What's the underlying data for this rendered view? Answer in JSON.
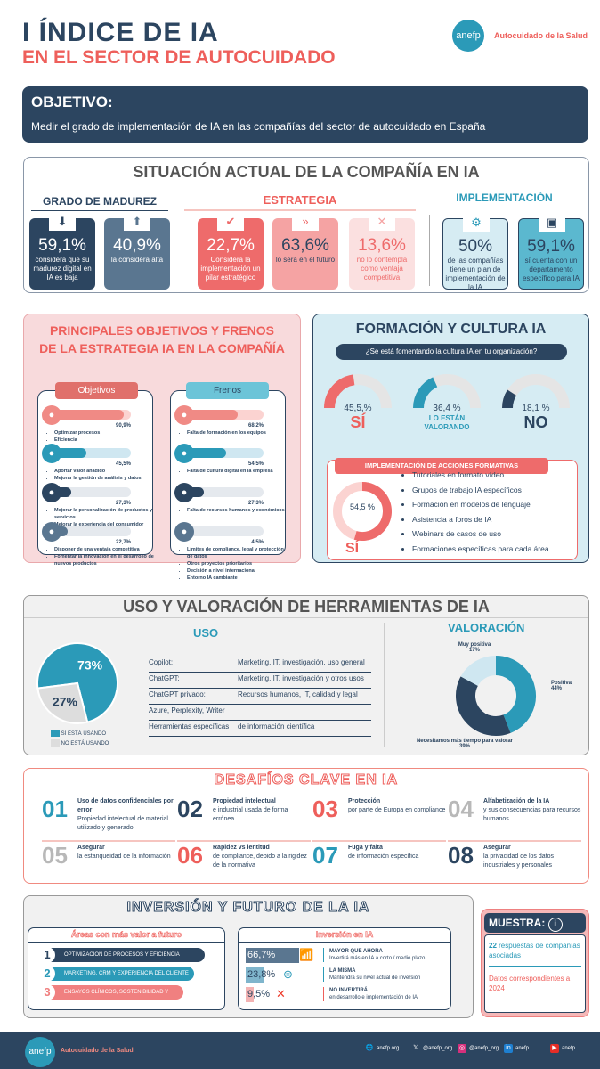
{
  "header": {
    "title": "I ÍNDICE DE IA",
    "subtitle": "EN EL SECTOR DE AUTOCUIDADO",
    "logo": "anefp",
    "logo_tag": "Autocuidado de la Salud"
  },
  "objetivo": {
    "title": "OBJETIVO:",
    "text": "Medir el grado de implementación de IA en las compañías del sector de autocuidado en España"
  },
  "situacion": {
    "title": "SITUACIÓN ACTUAL DE LA COMPAÑÍA EN IA",
    "madurez": {
      "title": "GRADO DE MADUREZ",
      "cards": [
        {
          "value": "59,1%",
          "text": "considera que su madurez digital en IA es baja",
          "icon": "arrow-down-icon"
        },
        {
          "value": "40,9%",
          "text": "la considera alta",
          "icon": "arrow-up-icon"
        }
      ]
    },
    "estrategia": {
      "title": "ESTRATEGIA",
      "cards": [
        {
          "value": "22,7%",
          "text": "Considera la implementación un pilar estratégico",
          "icon": "check-icon"
        },
        {
          "value": "63,6%",
          "text": "lo será en el futuro",
          "icon": "chevrons-icon"
        },
        {
          "value": "13,6%",
          "text": "no lo contempla como ventaja competitiva",
          "icon": "x-icon"
        }
      ]
    },
    "implementacion": {
      "title": "IMPLEMENTACIÓN",
      "cards": [
        {
          "value": "50%",
          "text": "de las compañías tiene un plan de implementación de la IA",
          "icon": "gear-icon"
        },
        {
          "value": "59,1%",
          "text": "sí cuenta con un departamento específico para IA",
          "icon": "ai-chip-icon"
        }
      ]
    }
  },
  "principales": {
    "title1": "PRINCIPALES OBJETIVOS Y FRENOS",
    "title2": "DE LA ESTRATEGIA IA EN LA COMPAÑÍA",
    "objetivos": {
      "label": "Objetivos",
      "items": [
        {
          "pct": 90.9,
          "pct_label": "90,9%",
          "bullets": [
            "Optimizar procesos",
            "Eficiencia"
          ]
        },
        {
          "pct": 45.5,
          "pct_label": "45,5%",
          "bullets": [
            "Aportar valor añadido",
            "Mejorar la gestión de análisis y datos"
          ]
        },
        {
          "pct": 27.3,
          "pct_label": "27,3%",
          "bullets": [
            "Mejorar la personalización de productos y servicios",
            "Mejorar la experiencia del consumidor",
            "Reducir costes"
          ]
        },
        {
          "pct": 22.7,
          "pct_label": "22,7%",
          "bullets": [
            "Disponer de una ventaja competitiva",
            "Fomentar la innovación en el desarrollo de nuevos productos"
          ]
        }
      ]
    },
    "frenos": {
      "label": "Frenos",
      "items": [
        {
          "pct": 68.2,
          "pct_label": "68,2%",
          "bullets": [
            "Falta de formación en los equipos"
          ]
        },
        {
          "pct": 54.5,
          "pct_label": "54,5%",
          "bullets": [
            "Falta de cultura digital en la empresa"
          ]
        },
        {
          "pct": 27.3,
          "pct_label": "27,3%",
          "bullets": [
            "Falta de recursos humanos y económicos"
          ]
        },
        {
          "pct": 4.5,
          "pct_label": "4,5%",
          "bullets": [
            "Límites de compliance, legal y protección de datos",
            "Otros proyectos prioritarios",
            "Decisión a nivel internacional",
            "Entorno IA cambiante"
          ]
        }
      ]
    }
  },
  "formacion": {
    "title": "FORMACIÓN Y CULTURA IA",
    "question": "¿Se está fomentando la cultura IA en tu organización?",
    "gauges": [
      {
        "value": 45.5,
        "label": "45,5,%",
        "caption": "SÍ"
      },
      {
        "value": 36.4,
        "label": "36,4 %",
        "caption": "LO ESTÁN VALORANDO"
      },
      {
        "value": 18.1,
        "label": "18,1 %",
        "caption": "NO"
      }
    ],
    "acciones_title": "IMPLEMENTACIÓN DE ACCIONES FORMATIVAS",
    "acciones_value": 54.5,
    "acciones_label": "54,5 %",
    "acciones_caption": "SÍ",
    "acciones": [
      "Tutoriales en formato vídeo",
      "Grupos de trabajo IA específicos",
      "Formación en modelos de lenguaje",
      "Asistencia a foros de IA",
      "Webinars de casos de uso",
      "Formaciones específicas para cada área"
    ]
  },
  "uso": {
    "title": "USO Y VALORACIÓN DE HERRAMIENTAS DE IA",
    "uso_title": "USO",
    "pie": [
      {
        "label": "SÍ ESTÁ USANDO",
        "value": 73,
        "value_label": "73%",
        "color": "#2b9ab8"
      },
      {
        "label": "NO ESTÁ USANDO",
        "value": 27,
        "value_label": "27%",
        "color": "#dddddd"
      }
    ],
    "tools": [
      {
        "name": "Copilot:",
        "use": "Marketing, IT, investigación, uso general"
      },
      {
        "name": "ChatGPT:",
        "use": "Marketing, IT, investigación y otros usos"
      },
      {
        "name": "ChatGPT privado:",
        "use": "Recursos humanos, IT, calidad y legal"
      },
      {
        "name": "Azure, Perplexity, Writer",
        "use": ""
      },
      {
        "name": "Herramientas específicas",
        "use": "de información científica"
      }
    ],
    "valoracion_title": "VALORACIÓN",
    "donut": [
      {
        "label": "Positiva",
        "value": 44,
        "value_label": "44%",
        "color": "#2b9ab8"
      },
      {
        "label": "Necesitamos más tiempo para valorar",
        "value": 39,
        "value_label": "39%",
        "color": "#2c4560"
      },
      {
        "label": "Muy positiva",
        "value": 17,
        "value_label": "17%",
        "color": "#cfe7f1"
      }
    ]
  },
  "desafios": {
    "title": "DESAFÍOS CLAVE EN IA",
    "items": [
      {
        "num": "01",
        "bold": "Uso de datos confidenciales por error",
        "text": "Propiedad intelectual de material utilizado y generado",
        "color": "#2b9ab8"
      },
      {
        "num": "02",
        "bold": "Propiedad intelectual",
        "text": "e industrial usada de forma errónea",
        "color": "#2c4560"
      },
      {
        "num": "03",
        "bold": "Protección",
        "text": "por parte de Europa en compliance",
        "color": "#ee5f5b"
      },
      {
        "num": "04",
        "bold": "Alfabetización de la IA",
        "text": "y sus consecuencias para recursos humanos",
        "color": "#b8b8b8"
      },
      {
        "num": "05",
        "bold": "Asegurar",
        "text": "la estanqueidad de la información",
        "color": "#b8b8b8"
      },
      {
        "num": "06",
        "bold": "Rapidez vs lentitud",
        "text": "de compliance, debido a la rigidez de la normativa",
        "color": "#ee5f5b"
      },
      {
        "num": "07",
        "bold": "Fuga y falta",
        "text": "de información específica",
        "color": "#2b9ab8"
      },
      {
        "num": "08",
        "bold": "Asegurar",
        "text": "la privacidad de los datos industriales y personales",
        "color": "#2c4560"
      }
    ]
  },
  "inversion": {
    "title": "INVERSIÓN Y FUTURO DE LA IA",
    "areas_title": "Áreas con más valor a futuro",
    "areas": [
      {
        "num": "1",
        "label": "OPTIMIZACIÓN DE PROCESOS Y EFICIENCIA",
        "color": "#2c4560"
      },
      {
        "num": "2",
        "label": "MARKETING, CRM Y EXPERIENCIA DEL CLIENTE",
        "color": "#2b9ab8"
      },
      {
        "num": "3",
        "label": "ENSAYOS CLÍNICOS, SOSTENIBILIDAD Y CIENCIA",
        "color": "#f08080"
      }
    ],
    "inv_title": "Inversión en IA",
    "rows": [
      {
        "value": 66.7,
        "label": "66,7%",
        "head": "MAYOR QUE AHORA",
        "text": "Invertirá más en IA a corto / medio plazo",
        "color": "#5a7690"
      },
      {
        "value": 23.8,
        "label": "23,8%",
        "head": "LA MISMA",
        "text": "Mantendrá su nivel actual de inversión",
        "color": "#7fb5cc"
      },
      {
        "value": 9.5,
        "label": "9,5%",
        "head": "NO INVERTIRÁ",
        "text": "en desarrollo e implementación de IA",
        "color": "#f3b3b3"
      }
    ]
  },
  "muestra": {
    "title": "MUESTRA:",
    "n": "22",
    "n_text": "respuestas de compañías asociadas",
    "datos": "Datos correspondientes a 2024"
  },
  "footer": {
    "logo": "anefp",
    "tag": "Autocuidado de la Salud",
    "social": [
      {
        "icon": "globe-icon",
        "text": "anefp.org"
      },
      {
        "icon": "x-icon",
        "text": "@anefp_org"
      },
      {
        "icon": "instagram-icon",
        "text": "@anefp_org"
      },
      {
        "icon": "linkedin-icon",
        "text": "anefp"
      },
      {
        "icon": "youtube-icon",
        "text": "anefp"
      }
    ]
  }
}
